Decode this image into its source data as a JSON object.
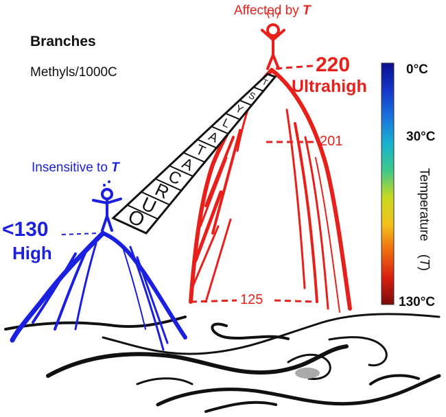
{
  "header": {
    "title": "Branches",
    "subtitle": "Methyls/1000C"
  },
  "red_peak": {
    "caption_prefix": "Affected by ",
    "caption_symbol": "T",
    "value": "220",
    "level": "Ultrahigh",
    "marker_mid": "201",
    "marker_low": "125"
  },
  "blue_peak": {
    "caption_prefix": "Insensitive to ",
    "caption_symbol": "T",
    "value": "<130",
    "level": "High"
  },
  "bridge": {
    "letters": [
      "O",
      "U",
      "R",
      "C",
      "A",
      "T",
      "A",
      "L",
      "Y",
      "S",
      "T"
    ]
  },
  "colorbar": {
    "top_label": "0°C",
    "mid_label": "30°C",
    "bottom_label": "130°C",
    "title_prefix": "Temperature　(",
    "title_symbol": "T",
    "title_suffix": ")",
    "gradient": [
      "#0a0f8c",
      "#1535c8",
      "#1a72dc",
      "#18b2d0",
      "#3ec88a",
      "#c8d820",
      "#f2c21a",
      "#f06a10",
      "#d82010",
      "#7a0a0a"
    ]
  },
  "colors": {
    "red": "#e8201b",
    "blue": "#1a1fe0",
    "ink": "#111111"
  }
}
